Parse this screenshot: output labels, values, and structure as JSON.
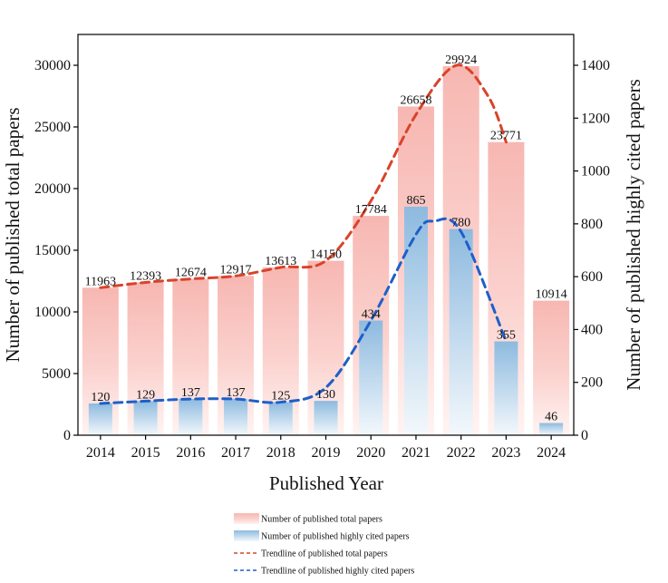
{
  "chart_data": {
    "type": "bar",
    "categories": [
      "2014",
      "2015",
      "2016",
      "2017",
      "2018",
      "2019",
      "2020",
      "2021",
      "2022",
      "2023",
      "2024"
    ],
    "series": [
      {
        "name": "Number of published total papers",
        "axis": "left",
        "values": [
          11963,
          12393,
          12674,
          12917,
          13613,
          14150,
          17784,
          26658,
          29924,
          23771,
          10914
        ],
        "color": "#f5b5b0"
      },
      {
        "name": "Number of published highly cited papers",
        "axis": "right",
        "values": [
          120,
          129,
          137,
          137,
          125,
          130,
          434,
          865,
          780,
          355,
          46
        ],
        "color": "#8fb8dc"
      }
    ],
    "trendlines": [
      {
        "name": "Trendline of published total papers",
        "axis": "left",
        "color": "#d9432a",
        "points": [
          [
            2014,
            11963
          ],
          [
            2015,
            12393
          ],
          [
            2016,
            12674
          ],
          [
            2017,
            12917
          ],
          [
            2018,
            13613
          ],
          [
            2019,
            14150
          ],
          [
            2020,
            19000
          ],
          [
            2021,
            26000
          ],
          [
            2021.9,
            30000
          ],
          [
            2022.6,
            27500
          ],
          [
            2023,
            23771
          ]
        ]
      },
      {
        "name": "Trendline of published highly cited papers",
        "axis": "right",
        "color": "#1e5fc9",
        "points": [
          [
            2014,
            120
          ],
          [
            2015,
            129
          ],
          [
            2016,
            137
          ],
          [
            2017,
            137
          ],
          [
            2018,
            125
          ],
          [
            2019,
            180
          ],
          [
            2020,
            434
          ],
          [
            2021,
            760
          ],
          [
            2021.4,
            810
          ],
          [
            2022,
            770
          ],
          [
            2023,
            355
          ]
        ]
      }
    ],
    "bar_labels_total": [
      "11963",
      "12393",
      "12674",
      "12917",
      "13613",
      "14150",
      "17784",
      "26658",
      "29924",
      "23771",
      "10914"
    ],
    "bar_labels_cited": [
      "120",
      "129",
      "137",
      "137",
      "125",
      "130",
      "434",
      "865",
      "780",
      "355",
      "46"
    ],
    "xlabel": "Published Year",
    "ylabel_left": "Number of published total papers",
    "ylabel_right": "Number of published highly cited papers",
    "ylim_left": [
      0,
      32500
    ],
    "ylim_right": [
      0,
      1516.7
    ],
    "yticks_left": [
      "0",
      "5000",
      "10000",
      "15000",
      "20000",
      "25000",
      "30000"
    ],
    "yticks_right": [
      "0",
      "200",
      "400",
      "600",
      "800",
      "1000",
      "1200",
      "1400"
    ],
    "legend": [
      "Number of published total papers",
      "Number of published highly cited papers",
      "Trendline of published total papers",
      "Trendline of published highly cited papers"
    ],
    "legend_position": "bottom",
    "grid": false
  }
}
